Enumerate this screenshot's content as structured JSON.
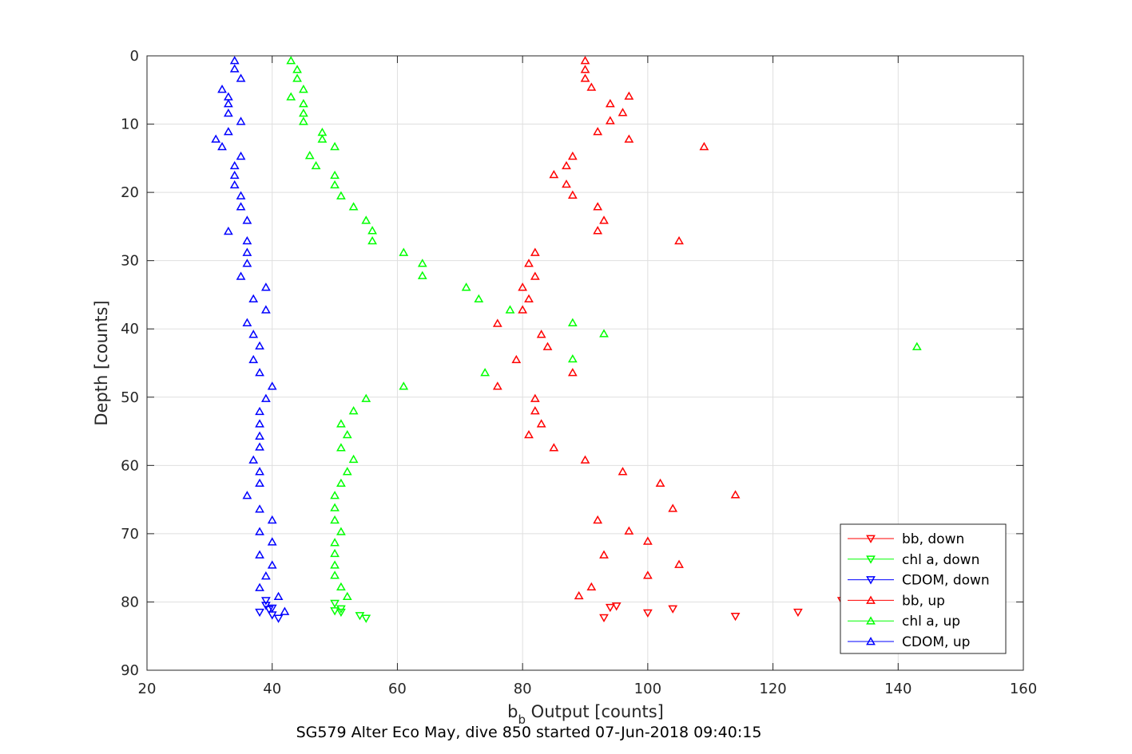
{
  "chart_data": {
    "type": "scatter",
    "title": "",
    "xlabel_main": "b",
    "xlabel_sub": "b",
    "xlabel_rest": " Output [counts]",
    "ylabel": "Depth [counts]",
    "caption": "SG579 Alter Eco May, dive 850 started 07-Jun-2018 09:40:15",
    "xlim": [
      20,
      160
    ],
    "ylim": [
      0,
      90
    ],
    "y_reversed": true,
    "xticks": [
      "20",
      "40",
      "60",
      "80",
      "100",
      "120",
      "140",
      "160"
    ],
    "yticks": [
      "0",
      "10",
      "20",
      "30",
      "40",
      "50",
      "60",
      "70",
      "80",
      "90"
    ],
    "grid": true,
    "legend_position": "bottom-right",
    "series": [
      {
        "name": "bb, down",
        "color": "#ff0000",
        "marker": "triangle-down",
        "points": [
          [
            93,
            82.3
          ],
          [
            114,
            82.1
          ],
          [
            124,
            81.5
          ],
          [
            104,
            81.0
          ],
          [
            100,
            81.6
          ],
          [
            95,
            80.6
          ],
          [
            94,
            80.8
          ],
          [
            131,
            79.8
          ]
        ]
      },
      {
        "name": "chl a, down",
        "color": "#00ff00",
        "marker": "triangle-down",
        "points": [
          [
            54,
            82.0
          ],
          [
            55,
            82.4
          ],
          [
            51,
            81.0
          ],
          [
            50,
            80.2
          ],
          [
            51,
            81.5
          ],
          [
            50,
            81.3
          ]
        ]
      },
      {
        "name": "CDOM, down",
        "color": "#0000ff",
        "marker": "triangle-down",
        "points": [
          [
            38,
            81.5
          ],
          [
            40,
            81.9
          ],
          [
            41,
            82.4
          ],
          [
            39,
            80.5
          ],
          [
            40,
            80.9
          ],
          [
            39,
            79.8
          ],
          [
            39.5,
            81.1
          ]
        ]
      },
      {
        "name": "bb, up",
        "color": "#ff0000",
        "marker": "triangle-up",
        "points": [
          [
            90,
            0.7
          ],
          [
            90,
            2.0
          ],
          [
            90,
            3.3
          ],
          [
            91,
            4.6
          ],
          [
            97,
            5.9
          ],
          [
            94,
            7.0
          ],
          [
            96,
            8.3
          ],
          [
            94,
            9.5
          ],
          [
            92,
            11.1
          ],
          [
            97,
            12.2
          ],
          [
            109,
            13.3
          ],
          [
            88,
            14.7
          ],
          [
            87,
            16.1
          ],
          [
            85,
            17.4
          ],
          [
            87,
            18.8
          ],
          [
            88,
            20.4
          ],
          [
            92,
            22.1
          ],
          [
            93,
            24.1
          ],
          [
            92,
            25.6
          ],
          [
            105,
            27.1
          ],
          [
            82,
            28.8
          ],
          [
            81,
            30.4
          ],
          [
            82,
            32.3
          ],
          [
            80,
            33.9
          ],
          [
            81,
            35.6
          ],
          [
            80,
            37.2
          ],
          [
            76,
            39.2
          ],
          [
            83,
            40.8
          ],
          [
            84,
            42.6
          ],
          [
            79,
            44.5
          ],
          [
            88,
            46.4
          ],
          [
            76,
            48.4
          ],
          [
            82,
            50.2
          ],
          [
            82,
            52.0
          ],
          [
            83,
            53.9
          ],
          [
            81,
            55.5
          ],
          [
            85,
            57.4
          ],
          [
            90,
            59.2
          ],
          [
            96,
            60.9
          ],
          [
            102,
            62.6
          ],
          [
            114,
            64.3
          ],
          [
            104,
            66.3
          ],
          [
            92,
            68.0
          ],
          [
            97,
            69.6
          ],
          [
            100,
            71.1
          ],
          [
            93,
            73.1
          ],
          [
            105,
            74.5
          ],
          [
            100,
            76.1
          ],
          [
            91,
            77.8
          ],
          [
            89,
            79.1
          ]
        ]
      },
      {
        "name": "chl a, up",
        "color": "#00ff00",
        "marker": "triangle-up",
        "points": [
          [
            43,
            0.7
          ],
          [
            44,
            2.0
          ],
          [
            44,
            3.3
          ],
          [
            45,
            4.9
          ],
          [
            43,
            6.0
          ],
          [
            45,
            7.0
          ],
          [
            45,
            8.4
          ],
          [
            45,
            9.6
          ],
          [
            48,
            11.2
          ],
          [
            48,
            12.2
          ],
          [
            50,
            13.3
          ],
          [
            46,
            14.6
          ],
          [
            47,
            16.1
          ],
          [
            50,
            17.5
          ],
          [
            50,
            18.9
          ],
          [
            51,
            20.5
          ],
          [
            53,
            22.1
          ],
          [
            55,
            24.1
          ],
          [
            56,
            25.6
          ],
          [
            56,
            27.1
          ],
          [
            61,
            28.8
          ],
          [
            64,
            30.4
          ],
          [
            64,
            32.2
          ],
          [
            71,
            33.9
          ],
          [
            73,
            35.6
          ],
          [
            78,
            37.2
          ],
          [
            88,
            39.1
          ],
          [
            93,
            40.7
          ],
          [
            143,
            42.6
          ],
          [
            88,
            44.4
          ],
          [
            74,
            46.4
          ],
          [
            61,
            48.4
          ],
          [
            55,
            50.2
          ],
          [
            53,
            52.0
          ],
          [
            51,
            53.9
          ],
          [
            52,
            55.5
          ],
          [
            51,
            57.4
          ],
          [
            53,
            59.1
          ],
          [
            52,
            60.9
          ],
          [
            51,
            62.6
          ],
          [
            50,
            64.4
          ],
          [
            50,
            66.2
          ],
          [
            50,
            68.0
          ],
          [
            51,
            69.7
          ],
          [
            50,
            71.3
          ],
          [
            50,
            72.9
          ],
          [
            50,
            74.6
          ],
          [
            50,
            76.1
          ],
          [
            51,
            77.8
          ],
          [
            52,
            79.2
          ]
        ]
      },
      {
        "name": "CDOM, up",
        "color": "#0000ff",
        "marker": "triangle-up",
        "points": [
          [
            34,
            0.7
          ],
          [
            34,
            1.9
          ],
          [
            35,
            3.3
          ],
          [
            32,
            4.9
          ],
          [
            33,
            6.0
          ],
          [
            33,
            7.0
          ],
          [
            33,
            8.4
          ],
          [
            35,
            9.6
          ],
          [
            33,
            11.1
          ],
          [
            31,
            12.2
          ],
          [
            32,
            13.3
          ],
          [
            35,
            14.7
          ],
          [
            34,
            16.1
          ],
          [
            34,
            17.5
          ],
          [
            34,
            18.9
          ],
          [
            35,
            20.5
          ],
          [
            35,
            22.1
          ],
          [
            36,
            24.1
          ],
          [
            33,
            25.7
          ],
          [
            36,
            27.1
          ],
          [
            36,
            28.8
          ],
          [
            36,
            30.4
          ],
          [
            35,
            32.3
          ],
          [
            39,
            33.9
          ],
          [
            37,
            35.6
          ],
          [
            39,
            37.2
          ],
          [
            36,
            39.1
          ],
          [
            37,
            40.8
          ],
          [
            38,
            42.5
          ],
          [
            37,
            44.5
          ],
          [
            38,
            46.4
          ],
          [
            40,
            48.4
          ],
          [
            39,
            50.2
          ],
          [
            38,
            52.1
          ],
          [
            38,
            53.9
          ],
          [
            38,
            55.7
          ],
          [
            38,
            57.3
          ],
          [
            37,
            59.2
          ],
          [
            38,
            60.9
          ],
          [
            38,
            62.6
          ],
          [
            36,
            64.4
          ],
          [
            38,
            66.4
          ],
          [
            40,
            68.0
          ],
          [
            38,
            69.7
          ],
          [
            40,
            71.2
          ],
          [
            38,
            73.1
          ],
          [
            40,
            74.6
          ],
          [
            39,
            76.2
          ],
          [
            38,
            77.9
          ],
          [
            41,
            79.2
          ],
          [
            42,
            81.4
          ]
        ]
      }
    ]
  }
}
